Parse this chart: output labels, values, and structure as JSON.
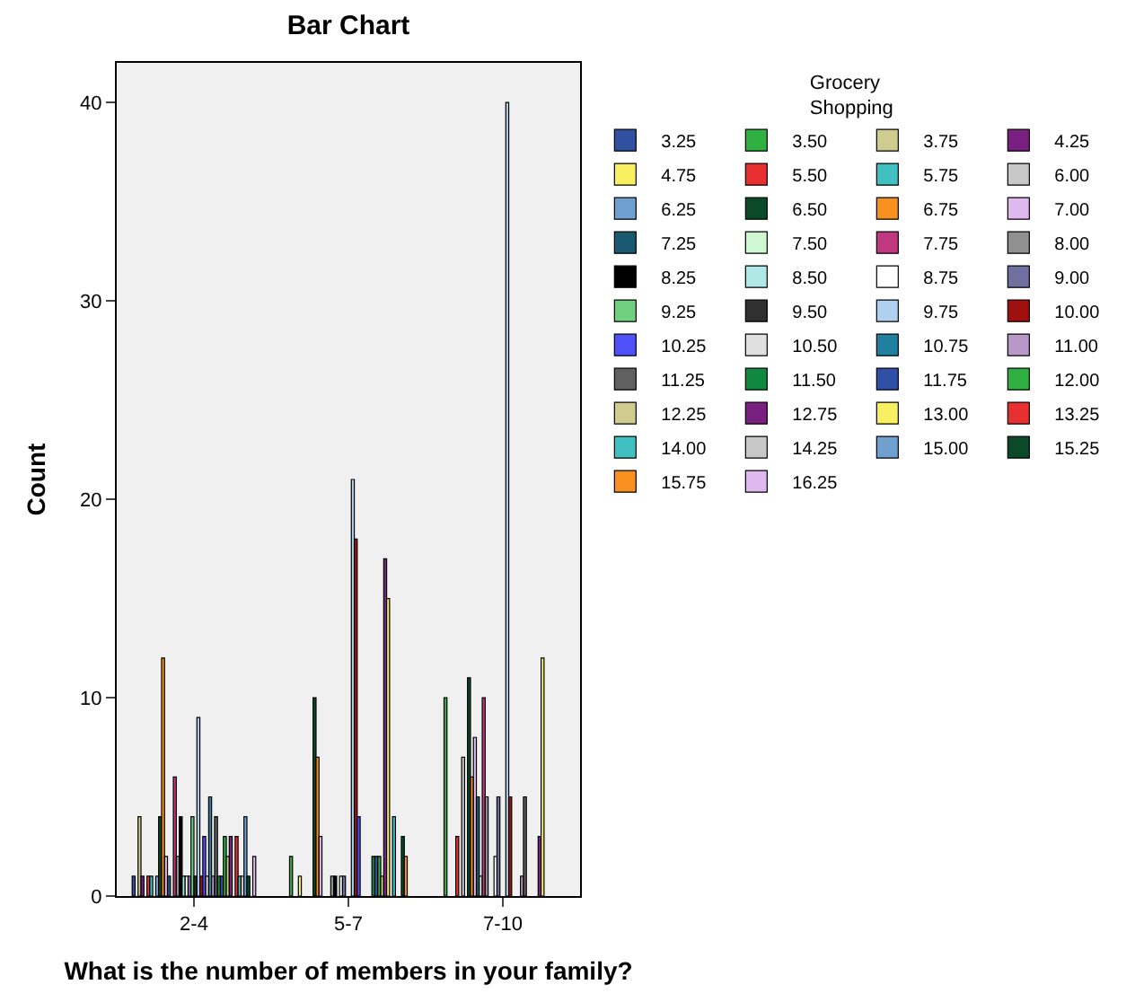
{
  "chart_data": {
    "type": "bar",
    "title": "Bar Chart",
    "xlabel": "What is the number of members in your family?",
    "ylabel": "Count",
    "legend_title": "Grocery Shopping",
    "categories": [
      "2-4",
      "5-7",
      "7-10"
    ],
    "ylim": [
      0,
      42
    ],
    "yticks": [
      0,
      10,
      20,
      30,
      40
    ],
    "grid": false,
    "legend": "right",
    "series": [
      {
        "name": "3.25",
        "color": "#3050a0",
        "values": [
          1,
          null,
          null
        ]
      },
      {
        "name": "3.50",
        "color": "#30b040",
        "values": [
          null,
          2,
          10
        ]
      },
      {
        "name": "3.75",
        "color": "#d0cc90",
        "values": [
          4,
          null,
          null
        ]
      },
      {
        "name": "4.25",
        "color": "#7a2080",
        "values": [
          1,
          null,
          null
        ]
      },
      {
        "name": "4.75",
        "color": "#f8f060",
        "values": [
          null,
          1,
          null
        ]
      },
      {
        "name": "5.50",
        "color": "#e83030",
        "values": [
          1,
          null,
          3
        ]
      },
      {
        "name": "5.75",
        "color": "#40c0c0",
        "values": [
          1,
          null,
          null
        ]
      },
      {
        "name": "6.00",
        "color": "#c8c8c8",
        "values": [
          null,
          null,
          7
        ]
      },
      {
        "name": "6.25",
        "color": "#70a0d0",
        "values": [
          1,
          null,
          null
        ]
      },
      {
        "name": "6.50",
        "color": "#0a4a28",
        "values": [
          4,
          10,
          11
        ]
      },
      {
        "name": "6.75",
        "color": "#f89020",
        "values": [
          12,
          7,
          6
        ]
      },
      {
        "name": "7.00",
        "color": "#e0b8f0",
        "values": [
          2,
          3,
          8
        ]
      },
      {
        "name": "7.25",
        "color": "#1a5a70",
        "values": [
          1,
          null,
          5
        ]
      },
      {
        "name": "7.50",
        "color": "#d0f8d0",
        "values": [
          null,
          null,
          1
        ]
      },
      {
        "name": "7.75",
        "color": "#c03880",
        "values": [
          6,
          null,
          10
        ]
      },
      {
        "name": "8.00",
        "color": "#909090",
        "values": [
          2,
          1,
          5
        ]
      },
      {
        "name": "8.25",
        "color": "#000000",
        "values": [
          4,
          1,
          null
        ]
      },
      {
        "name": "8.50",
        "color": "#b0e8e8",
        "values": [
          1,
          null,
          null
        ]
      },
      {
        "name": "8.75",
        "color": "#ffffff",
        "values": [
          1,
          1,
          2
        ]
      },
      {
        "name": "9.00",
        "color": "#7070a0",
        "values": [
          1,
          1,
          5
        ]
      },
      {
        "name": "9.25",
        "color": "#70d080",
        "values": [
          4,
          null,
          null
        ]
      },
      {
        "name": "9.50",
        "color": "#303030",
        "values": [
          1,
          null,
          null
        ]
      },
      {
        "name": "9.75",
        "color": "#b0d0f0",
        "values": [
          9,
          21,
          40
        ]
      },
      {
        "name": "10.00",
        "color": "#a01010",
        "values": [
          1,
          18,
          5
        ]
      },
      {
        "name": "10.25",
        "color": "#5050f8",
        "values": [
          3,
          4,
          null
        ]
      },
      {
        "name": "10.50",
        "color": "#e0e0e0",
        "values": [
          1,
          null,
          null
        ]
      },
      {
        "name": "10.75",
        "color": "#2080a0",
        "values": [
          5,
          null,
          null
        ]
      },
      {
        "name": "11.00",
        "color": "#b898c8",
        "values": [
          1,
          null,
          1
        ]
      },
      {
        "name": "11.25",
        "color": "#606060",
        "values": [
          4,
          null,
          5
        ]
      },
      {
        "name": "11.50",
        "color": "#108840",
        "values": [
          1,
          2,
          null
        ]
      },
      {
        "name": "11.75",
        "color": "#3050a8",
        "values": [
          1,
          2,
          null
        ]
      },
      {
        "name": "12.00",
        "color": "#30b040",
        "values": [
          3,
          2,
          null
        ]
      },
      {
        "name": "12.25",
        "color": "#d0cc90",
        "values": [
          2,
          1,
          null
        ]
      },
      {
        "name": "12.75",
        "color": "#7a2080",
        "values": [
          3,
          17,
          3
        ]
      },
      {
        "name": "13.00",
        "color": "#f8f060",
        "values": [
          null,
          15,
          12
        ]
      },
      {
        "name": "13.25",
        "color": "#e83030",
        "values": [
          3,
          null,
          null
        ]
      },
      {
        "name": "14.00",
        "color": "#40c0c0",
        "values": [
          1,
          4,
          null
        ]
      },
      {
        "name": "14.25",
        "color": "#c8c8c8",
        "values": [
          1,
          null,
          null
        ]
      },
      {
        "name": "15.00",
        "color": "#70a0d0",
        "values": [
          4,
          null,
          null
        ]
      },
      {
        "name": "15.25",
        "color": "#0a4a28",
        "values": [
          1,
          3,
          null
        ]
      },
      {
        "name": "15.75",
        "color": "#f89020",
        "values": [
          null,
          2,
          null
        ]
      },
      {
        "name": "16.25",
        "color": "#e0b8f0",
        "values": [
          2,
          null,
          null
        ]
      }
    ]
  }
}
